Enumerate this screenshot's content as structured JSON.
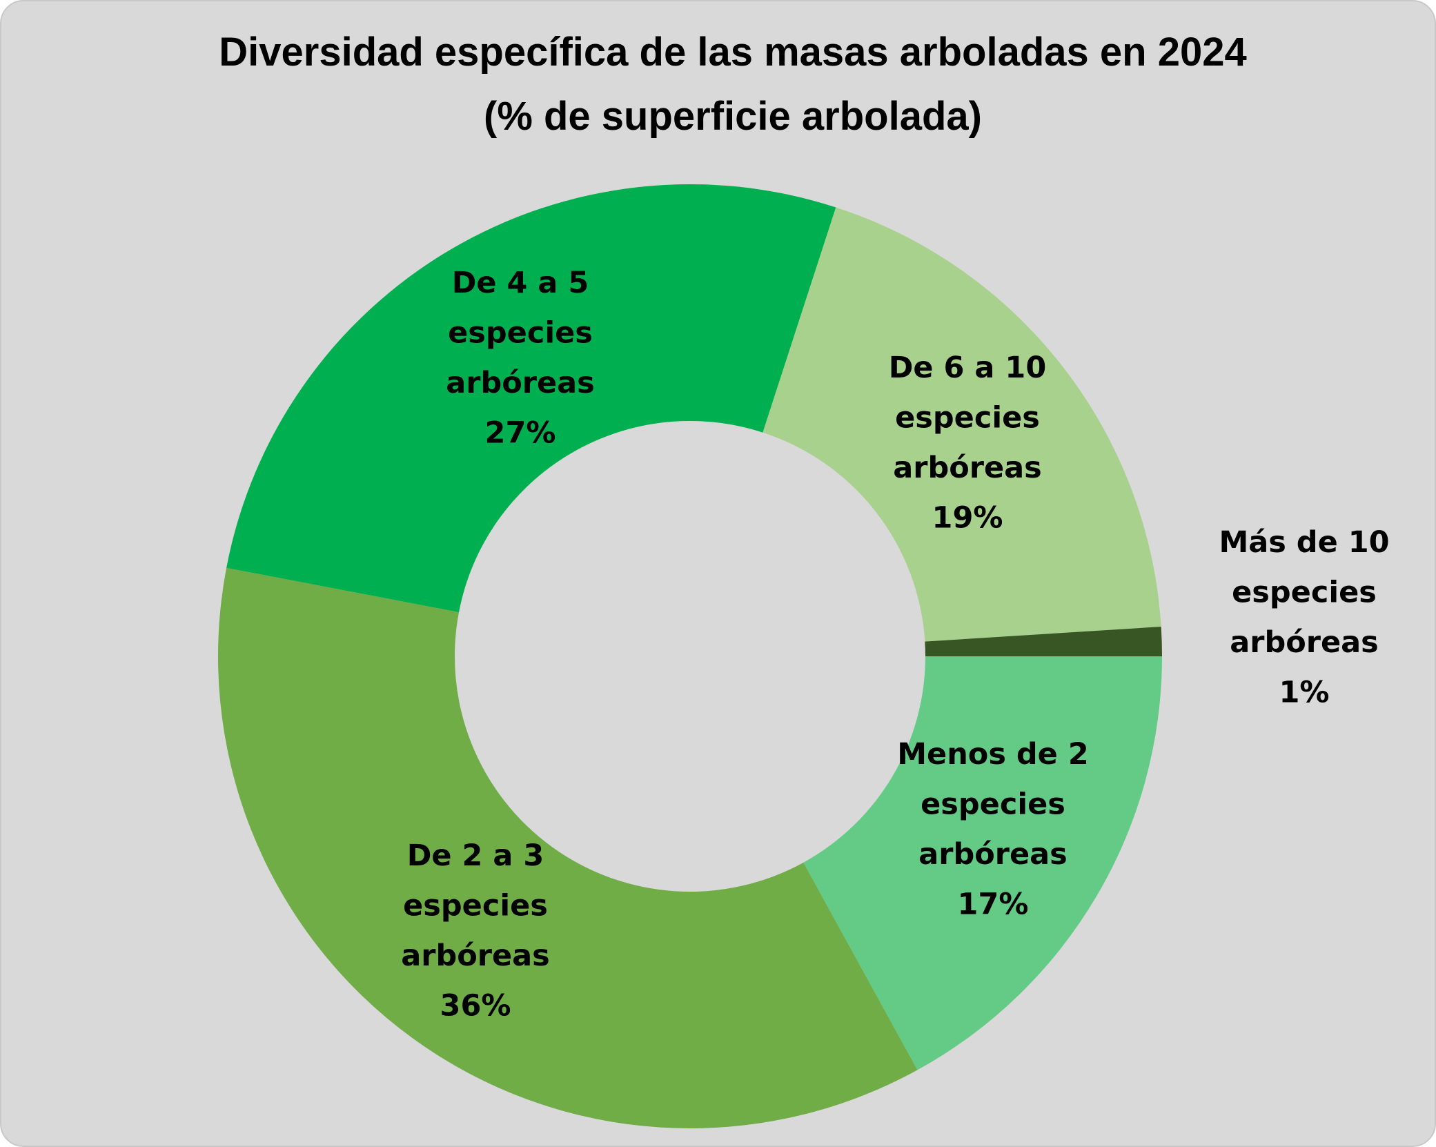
{
  "chart_data": {
    "type": "pie",
    "variant": "donut",
    "title": "Diversidad específica de las masas arboladas en 2024",
    "subtitle": "(% de superficie arbolada)",
    "slices": [
      {
        "label": [
          "Menos de 2",
          "especies",
          "arbóreas"
        ],
        "value": 17,
        "value_label": "17%",
        "color": "#63CB86"
      },
      {
        "label": [
          "De 2 a 3",
          "especies",
          "arbóreas"
        ],
        "value": 36,
        "value_label": "36%",
        "color": "#70AD47"
      },
      {
        "label": [
          "De 4 a 5",
          "especies",
          "arbóreas"
        ],
        "value": 27,
        "value_label": "27%",
        "color": "#00B050"
      },
      {
        "label": [
          "De 6 a 10",
          "especies",
          "arbóreas"
        ],
        "value": 19,
        "value_label": "19%",
        "color": "#A9D18E"
      },
      {
        "label": [
          "Más de 10",
          "especies",
          "arbóreas"
        ],
        "value": 1,
        "value_label": "1%",
        "color": "#375623"
      }
    ],
    "start_angle": "3 o'clock",
    "direction": "clockwise",
    "legend": "none"
  }
}
